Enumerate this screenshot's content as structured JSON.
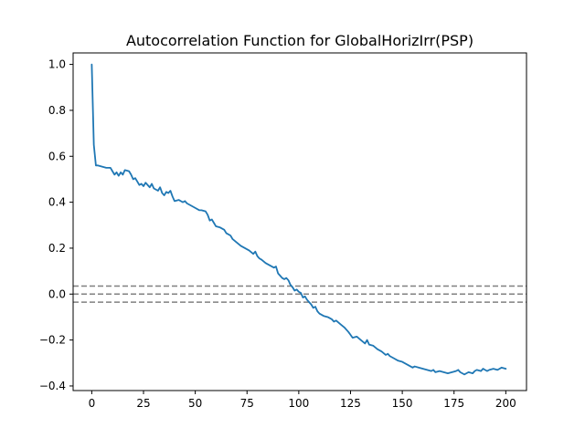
{
  "chart_data": {
    "type": "line",
    "title": "Autocorrelation Function for GlobalHorizIrr(PSP)",
    "xlabel": "",
    "ylabel": "",
    "xlim": [
      -9,
      210
    ],
    "ylim": [
      -0.42,
      1.05
    ],
    "xticks": [
      0,
      25,
      50,
      75,
      100,
      125,
      150,
      175,
      200
    ],
    "xtick_labels": [
      "0",
      "25",
      "50",
      "75",
      "100",
      "125",
      "150",
      "175",
      "200"
    ],
    "yticks": [
      -0.4,
      -0.2,
      0.0,
      0.2,
      0.4,
      0.6,
      0.8,
      1.0
    ],
    "ytick_labels": [
      "−0.4",
      "−0.2",
      "0.0",
      "0.2",
      "0.4",
      "0.6",
      "0.8",
      "1.0"
    ],
    "grid": false,
    "legend": "none",
    "series": [
      {
        "color": "#1f77b4",
        "x": [
          0,
          1,
          2,
          3,
          5,
          7,
          9,
          10,
          11,
          12,
          13,
          14,
          15,
          16,
          18,
          19,
          20,
          21,
          22,
          23,
          24,
          25,
          26,
          27,
          28,
          29,
          30,
          31,
          32,
          33,
          34,
          35,
          36,
          37,
          38,
          39,
          40,
          42,
          44,
          45,
          46,
          48,
          50,
          52,
          53,
          55,
          56,
          57,
          58,
          59,
          60,
          62,
          64,
          65,
          66,
          67,
          68,
          70,
          72,
          74,
          76,
          78,
          79,
          80,
          81,
          82,
          84,
          86,
          87,
          88,
          89,
          90,
          91,
          92,
          93,
          94,
          95,
          96,
          97,
          98,
          99,
          100,
          101,
          102,
          103,
          104,
          105,
          106,
          107,
          108,
          109,
          110,
          112,
          114,
          116,
          117,
          118,
          120,
          122,
          124,
          126,
          128,
          130,
          132,
          133,
          134,
          136,
          138,
          140,
          142,
          143,
          144,
          145,
          146,
          148,
          150,
          151,
          152,
          153,
          154,
          155,
          156,
          158,
          160,
          162,
          164,
          165,
          166,
          168,
          170,
          172,
          174,
          176,
          177,
          178,
          179,
          180,
          182,
          184,
          185,
          186,
          188,
          189,
          190,
          191,
          192,
          194,
          196,
          198,
          200
        ],
        "y": [
          1.0,
          0.65,
          0.56,
          0.56,
          0.555,
          0.55,
          0.55,
          0.535,
          0.52,
          0.53,
          0.515,
          0.53,
          0.52,
          0.54,
          0.535,
          0.52,
          0.5,
          0.505,
          0.49,
          0.475,
          0.48,
          0.47,
          0.485,
          0.475,
          0.465,
          0.48,
          0.46,
          0.455,
          0.45,
          0.465,
          0.44,
          0.43,
          0.445,
          0.44,
          0.45,
          0.425,
          0.405,
          0.41,
          0.4,
          0.405,
          0.395,
          0.385,
          0.375,
          0.365,
          0.365,
          0.36,
          0.345,
          0.32,
          0.325,
          0.31,
          0.295,
          0.29,
          0.28,
          0.265,
          0.26,
          0.255,
          0.24,
          0.225,
          0.21,
          0.2,
          0.19,
          0.175,
          0.185,
          0.165,
          0.155,
          0.15,
          0.135,
          0.125,
          0.12,
          0.115,
          0.12,
          0.09,
          0.08,
          0.07,
          0.065,
          0.07,
          0.06,
          0.04,
          0.03,
          0.015,
          0.02,
          0.01,
          0.005,
          -0.015,
          -0.01,
          -0.025,
          -0.035,
          -0.045,
          -0.06,
          -0.055,
          -0.075,
          -0.085,
          -0.095,
          -0.1,
          -0.11,
          -0.12,
          -0.115,
          -0.13,
          -0.145,
          -0.165,
          -0.19,
          -0.185,
          -0.2,
          -0.215,
          -0.2,
          -0.22,
          -0.225,
          -0.24,
          -0.25,
          -0.265,
          -0.26,
          -0.27,
          -0.275,
          -0.28,
          -0.29,
          -0.295,
          -0.3,
          -0.305,
          -0.31,
          -0.315,
          -0.32,
          -0.315,
          -0.32,
          -0.325,
          -0.33,
          -0.335,
          -0.33,
          -0.34,
          -0.335,
          -0.34,
          -0.345,
          -0.34,
          -0.335,
          -0.33,
          -0.34,
          -0.345,
          -0.35,
          -0.34,
          -0.345,
          -0.335,
          -0.33,
          -0.335,
          -0.325,
          -0.33,
          -0.335,
          -0.33,
          -0.325,
          -0.33,
          -0.32,
          -0.325
        ]
      }
    ],
    "reference_lines": [
      {
        "y": 0.035,
        "color": "#808080",
        "style": "dashed"
      },
      {
        "y": 0.0,
        "color": "#808080",
        "style": "dashed"
      },
      {
        "y": -0.035,
        "color": "#808080",
        "style": "dashed"
      }
    ]
  }
}
